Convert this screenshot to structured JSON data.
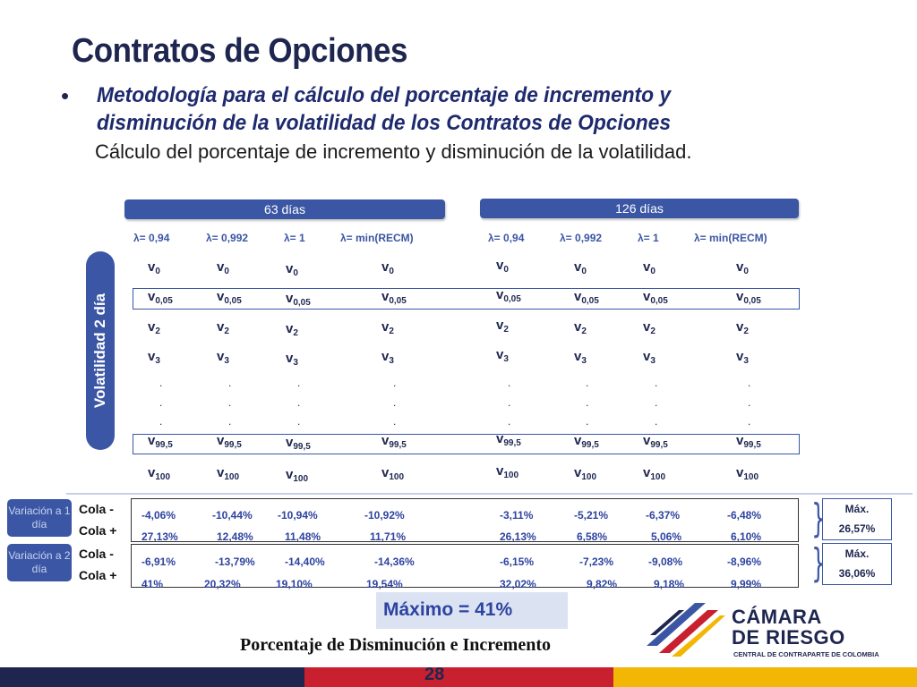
{
  "title": "Contratos de Opciones",
  "bullet": "•",
  "bullet_text": "Metodología para el cálculo del porcentaje de incremento y disminución de la volatilidad de los Contratos de Opciones",
  "subtitle": "Cálculo del porcentaje de incremento y disminución de la volatilidad.",
  "bands": [
    "63 días",
    "126 días"
  ],
  "lambdas": [
    "λ= 0,94",
    "λ= 0,992",
    "λ= 1",
    "λ= min(RECM)"
  ],
  "side_label": "Volatilidad 2 día",
  "vrows": [
    {
      "base": "v",
      "sub": "0"
    },
    {
      "base": "v",
      "sub": "0,05"
    },
    {
      "base": "v",
      "sub": "2"
    },
    {
      "base": "v",
      "sub": "3"
    },
    {
      "base": "v",
      "sub": "99,5"
    },
    {
      "base": "v",
      "sub": "100"
    }
  ],
  "dot": ".",
  "variations": [
    {
      "label": "Variación a 1 día",
      "cola_minus": "Cola -",
      "cola_plus": "Cola +",
      "minus": [
        "-4,06%",
        "-10,44%",
        "-10,94%",
        "-10,92%",
        "-3,11%",
        "-5,21%",
        "-6,37%",
        "-6,48%"
      ],
      "plus": [
        "27,13%",
        "12,48%",
        "11,48%",
        "11,71%",
        "26,13%",
        "6,58%",
        "5,06%",
        "6,10%"
      ],
      "max_label": "Máx.",
      "max_value": "26,57%"
    },
    {
      "label": "Variación a 2 día",
      "cola_minus": "Cola -",
      "cola_plus": "Cola +",
      "minus": [
        "-6,91%",
        "-13,79%",
        "-14,40%",
        "-14,36%",
        "-6,15%",
        "-7,23%",
        "-9,08%",
        "-8,96%"
      ],
      "plus": [
        "41%",
        "20,32%",
        "19,10%",
        "19,54%",
        "32,02%",
        "9,82%",
        "9,18%",
        "9,99%"
      ],
      "max_label": "Máx.",
      "max_value": "36,06%"
    }
  ],
  "maximo": "Máximo = 41%",
  "caption": "Porcentaje de Disminución e Incremento",
  "page_number": "28",
  "logo": {
    "line1": "CÁMARA",
    "line2": "DE RIESGO",
    "tagline": "CENTRAL DE CONTRAPARTE DE COLOMBIA"
  },
  "colors": {
    "navy": "#1e2650",
    "band_blue": "#3b56a4",
    "number_blue": "#2d43a0",
    "footer_red": "#c8202f",
    "footer_yellow": "#f2b705"
  }
}
